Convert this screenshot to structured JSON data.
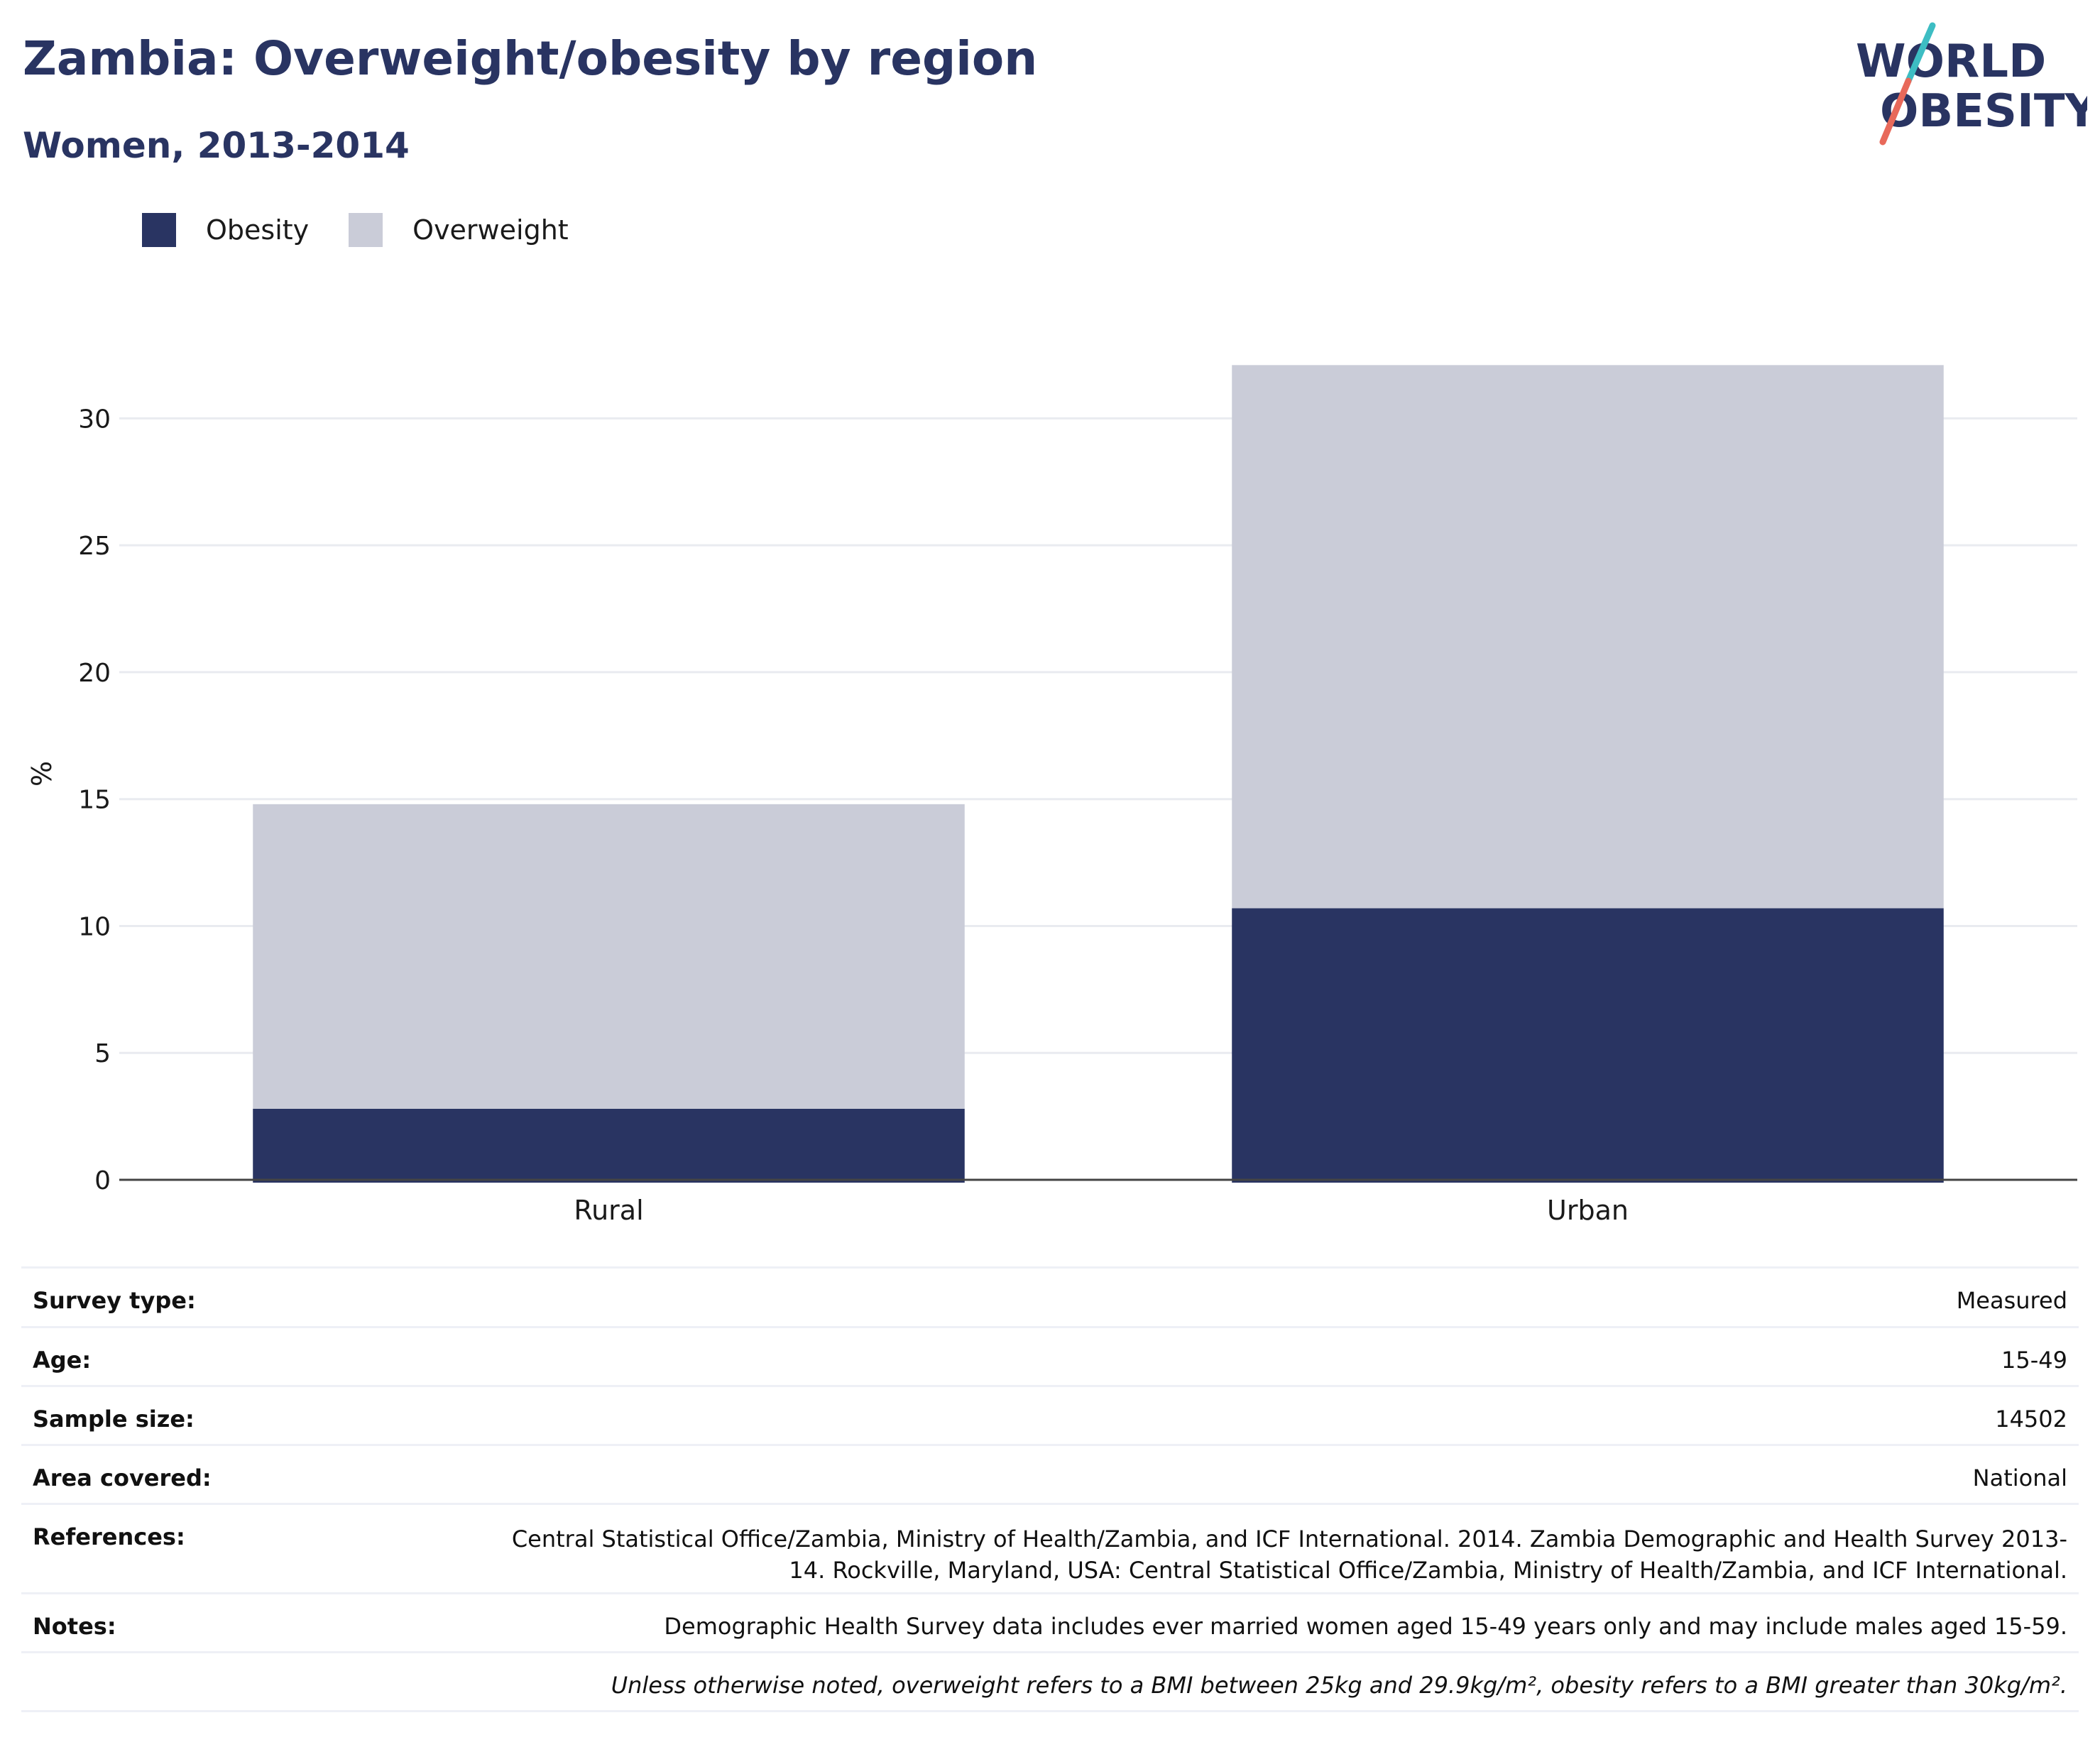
{
  "header": {
    "title": "Zambia: Overweight/obesity by region",
    "subtitle": "Women, 2013-2014"
  },
  "logo": {
    "line1": "WORLD",
    "line2": "OBESITY"
  },
  "legend": [
    {
      "label": "Obesity",
      "color": "#293462"
    },
    {
      "label": "Overweight",
      "color": "#caccd8"
    }
  ],
  "chart_data": {
    "type": "bar",
    "stacked": true,
    "categories": [
      "Rural",
      "Urban"
    ],
    "series": [
      {
        "name": "Obesity",
        "values": [
          2.8,
          10.7
        ],
        "color": "#293462"
      },
      {
        "name": "Overweight",
        "values": [
          12.0,
          21.4
        ],
        "color": "#caccd8"
      }
    ],
    "ylabel": "%",
    "yticks": [
      0,
      5,
      10,
      15,
      20,
      25,
      30
    ],
    "ylim": [
      0,
      32.5
    ],
    "grid": true,
    "legend_position": "top-left"
  },
  "info": {
    "survey_type_label": "Survey type:",
    "survey_type": "Measured",
    "age_label": "Age:",
    "age": "15-49",
    "sample_size_label": "Sample size:",
    "sample_size": "14502",
    "area_label": "Area covered:",
    "area": "National",
    "references_label": "References:",
    "references": "Central Statistical Office/Zambia, Ministry of Health/Zambia, and ICF International. 2014. Zambia Demographic and Health Survey 2013-14. Rockville, Maryland, USA: Central Statistical Office/Zambia, Ministry of Health/Zambia, and ICF International.",
    "notes_label": "Notes:",
    "notes": "Demographic Health Survey data includes ever married women aged 15-49 years only and may include males aged 15-59.",
    "footnote": "Unless otherwise noted, overweight refers to a BMI between 25kg and 29.9kg/m², obesity refers to a BMI greater than 30kg/m²."
  }
}
